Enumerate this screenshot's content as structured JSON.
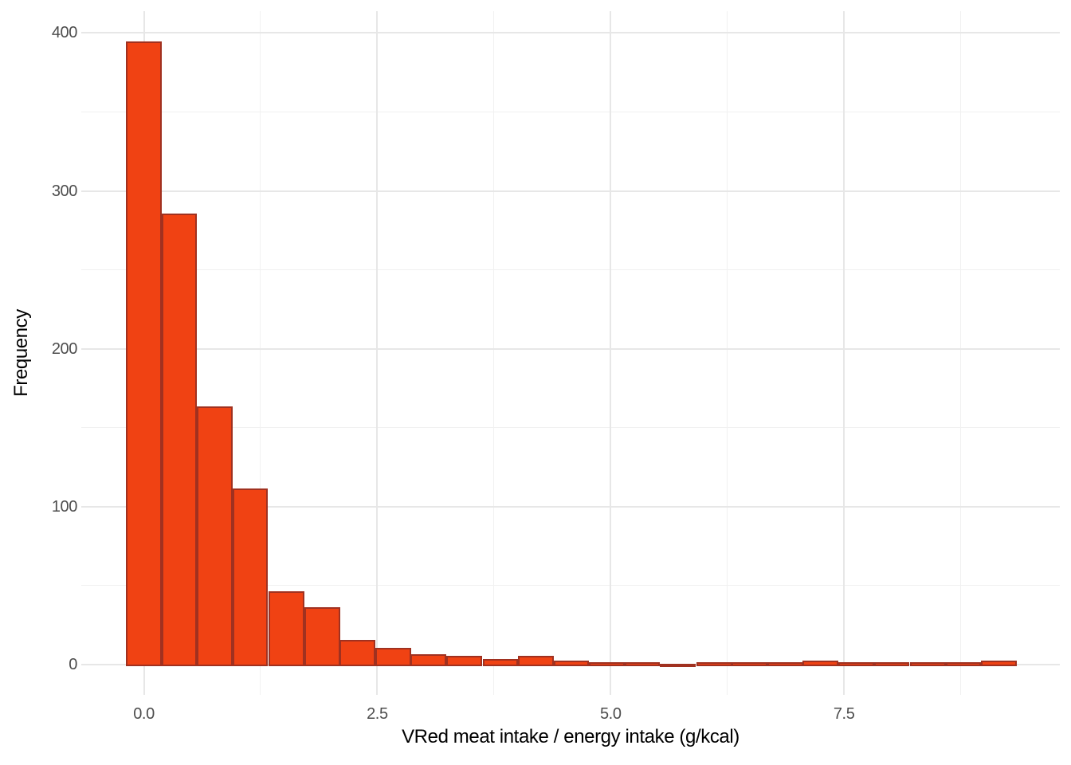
{
  "chart_data": {
    "type": "bar",
    "subtype": "histogram",
    "title": "",
    "xlabel": "VRed meat intake / energy intake (g/kcal)",
    "ylabel": "Frequency",
    "legend": "none",
    "grid": "major+minor",
    "background": "#ffffff",
    "bar_fill": "#f04213",
    "bar_stroke": "#a03120",
    "tick_label_color": "#4d4d4d",
    "axis_title_color": "#000000",
    "bin_width": 0.3816,
    "bin_centers": [
      0,
      0.38,
      0.76,
      1.14,
      1.53,
      1.91,
      2.29,
      2.67,
      3.05,
      3.43,
      3.82,
      4.2,
      4.58,
      4.96,
      5.34,
      5.72,
      6.11,
      6.49,
      6.87,
      7.25,
      7.63,
      8.01,
      8.4,
      8.78,
      9.16
    ],
    "counts": [
      394,
      285,
      163,
      111,
      46,
      36,
      15,
      10,
      6,
      5,
      3,
      5,
      2,
      1,
      1,
      0,
      1,
      1,
      1,
      2,
      1,
      1,
      1,
      1,
      2
    ],
    "xlim": [
      -0.67,
      9.81
    ],
    "ylim": [
      -19.2,
      413.8
    ],
    "x_tick_values": [
      0,
      2.5,
      5,
      7.5
    ],
    "x_tick_labels": [
      "0.0",
      "2.5",
      "5.0",
      "7.5"
    ],
    "x_minor_values": [
      1.25,
      3.75,
      6.25,
      8.75
    ],
    "y_tick_values": [
      0,
      100,
      200,
      300,
      400
    ],
    "y_tick_labels": [
      "0",
      "100",
      "200",
      "300",
      "400"
    ],
    "y_minor_values": [
      50,
      150,
      250,
      350
    ]
  }
}
